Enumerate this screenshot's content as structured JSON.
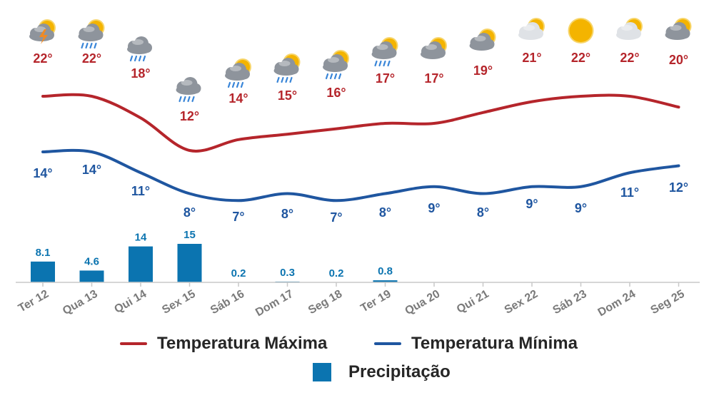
{
  "chart_data": {
    "type": "line",
    "categories": [
      "Ter 12",
      "Qua 13",
      "Qui 14",
      "Sex 15",
      "Sáb 16",
      "Dom 17",
      "Seg 18",
      "Ter 19",
      "Qua 20",
      "Qui 21",
      "Sex 22",
      "Sáb 23",
      "Dom 24",
      "Seg 25"
    ],
    "series": [
      {
        "name": "Temperatura Máxima",
        "type": "line",
        "color": "#b5252b",
        "values": [
          22,
          22,
          18,
          12,
          14,
          15,
          16,
          17,
          17,
          19,
          21,
          22,
          22,
          20
        ],
        "labels": [
          "22°",
          "22°",
          "18°",
          "12°",
          "14°",
          "15°",
          "16°",
          "17°",
          "17°",
          "19°",
          "21°",
          "22°",
          "22°",
          "20°"
        ]
      },
      {
        "name": "Temperatura Mínima",
        "type": "line",
        "color": "#1f56a0",
        "values": [
          14,
          14,
          11,
          8,
          7,
          8,
          7,
          8,
          9,
          8,
          9,
          9,
          11,
          12
        ],
        "labels": [
          "14°",
          "14°",
          "11°",
          "8°",
          "7°",
          "8°",
          "7°",
          "8°",
          "9°",
          "8°",
          "9°",
          "9°",
          "11°",
          "12°"
        ]
      },
      {
        "name": "Precipitação",
        "type": "bar",
        "color": "#0b74b0",
        "values": [
          8.1,
          4.6,
          14,
          15,
          0.2,
          0.3,
          0.2,
          0.8,
          null,
          null,
          null,
          null,
          null,
          null
        ],
        "labels": [
          "8.1",
          "4.6",
          "14",
          "15",
          "0.2",
          "0.3",
          "0.2",
          "0.8",
          "",
          "",
          "",
          "",
          "",
          ""
        ]
      }
    ],
    "weather_icons": [
      "thunderstorm-partly-sunny",
      "rain-partly-sunny",
      "rain-cloud",
      "rain-cloud",
      "rain-partly-sunny",
      "rain-partly-sunny",
      "rain-partly-sunny",
      "rain-partly-sunny",
      "cloudy-partly-sunny",
      "cloudy-partly-sunny",
      "partly-sunny-light",
      "sunny",
      "partly-sunny-light",
      "cloudy-partly-sunny"
    ],
    "legend": {
      "max_label": "Temperatura Máxima",
      "min_label": "Temperatura Mínima",
      "precip_label": "Precipitação",
      "position": "bottom-center"
    },
    "grid": false,
    "label_colors": {
      "max": "#b5252b",
      "min": "#1f56a0",
      "precip": "#0b74b0",
      "axis": "#7a7a7a"
    }
  }
}
